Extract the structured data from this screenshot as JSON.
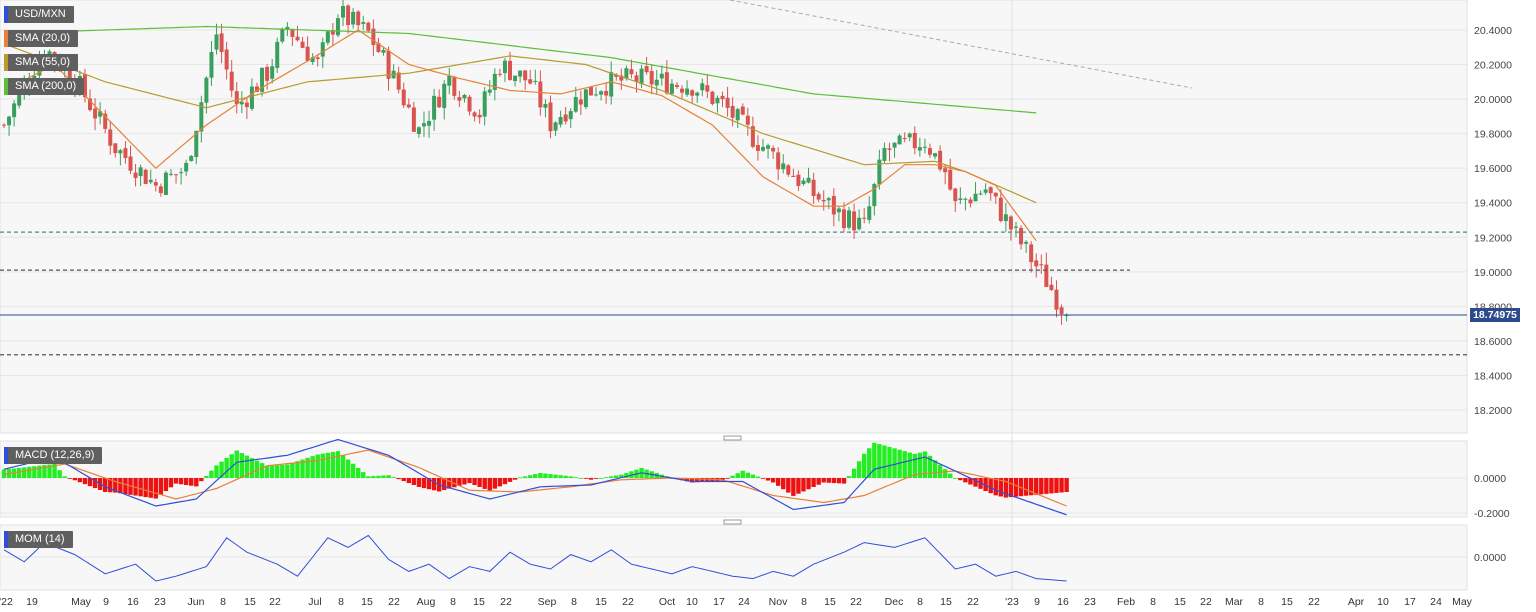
{
  "legends": {
    "symbol": "USD/MXN",
    "sma20": "SMA (20,0)",
    "sma55": "SMA (55,0)",
    "sma200": "SMA (200,0)",
    "macd": "MACD (12,26,9)",
    "mom": "MOM (14)"
  },
  "price_label": "18.74975",
  "colors": {
    "up": "#3a9e5e",
    "down": "#d9534f",
    "sma20": "#e8803a",
    "sma55": "#b89a2e",
    "sma200": "#5cbf3a",
    "macd_line": "#2f4fd8",
    "signal_line": "#e8803a",
    "hist_pos": "#22ee22",
    "hist_neg": "#ee1111",
    "mom_line": "#2f4fd8",
    "price_line": "#2c4a8c"
  },
  "chart_data": {
    "type": "candlestick",
    "price_axis": {
      "ticks": [
        "20.4000",
        "20.2000",
        "20.0000",
        "19.8000",
        "19.6000",
        "19.4000",
        "19.2000",
        "19.0000",
        "18.8000",
        "18.6000",
        "18.4000",
        "18.2000"
      ],
      "range": [
        18.07,
        20.6
      ]
    },
    "macd_axis": {
      "ticks": [
        "0.0000",
        "-0.2000"
      ]
    },
    "mom_axis": {
      "ticks": [
        "0.0000"
      ]
    },
    "x_tick_labels": [
      "'22",
      "19",
      "May",
      "9",
      "16",
      "23",
      "Jun",
      "8",
      "15",
      "22",
      "Jul",
      "8",
      "15",
      "22",
      "Aug",
      "8",
      "15",
      "22",
      "Sep",
      "8",
      "15",
      "22",
      "Oct",
      "10",
      "17",
      "24",
      "Nov",
      "8",
      "15",
      "22",
      "Dec",
      "8",
      "15",
      "22",
      "'23",
      "9",
      "16",
      "23",
      "Feb",
      "8",
      "15",
      "22",
      "Mar",
      "8",
      "15",
      "22",
      "Apr",
      "10",
      "17",
      "24",
      "May"
    ],
    "horizontal_levels": [
      19.23,
      19.01,
      18.52
    ],
    "last_price": 18.74975,
    "anchors": {
      "close": [
        [
          0,
          19.85
        ],
        [
          8,
          20.3
        ],
        [
          14,
          20.12
        ],
        [
          22,
          19.72
        ],
        [
          30,
          19.5
        ],
        [
          36,
          19.6
        ],
        [
          42,
          20.38
        ],
        [
          46,
          19.95
        ],
        [
          52,
          20.15
        ],
        [
          56,
          20.42
        ],
        [
          62,
          20.2
        ],
        [
          66,
          20.5
        ],
        [
          72,
          20.38
        ],
        [
          76,
          20.18
        ],
        [
          82,
          19.82
        ],
        [
          88,
          20.12
        ],
        [
          94,
          19.92
        ],
        [
          98,
          20.2
        ],
        [
          104,
          20.1
        ],
        [
          108,
          19.86
        ],
        [
          114,
          20.02
        ],
        [
          118,
          20.08
        ],
        [
          124,
          20.12
        ],
        [
          130,
          20.1
        ],
        [
          136,
          20.08
        ],
        [
          142,
          19.97
        ],
        [
          148,
          19.78
        ],
        [
          154,
          19.62
        ],
        [
          160,
          19.45
        ],
        [
          166,
          19.32
        ],
        [
          170,
          19.26
        ],
        [
          174,
          19.7
        ],
        [
          178,
          19.73
        ],
        [
          182,
          19.76
        ],
        [
          186,
          19.58
        ],
        [
          188,
          19.38
        ],
        [
          190,
          19.42
        ],
        [
          194,
          19.48
        ],
        [
          198,
          19.3
        ],
        [
          202,
          19.12
        ],
        [
          206,
          18.95
        ],
        [
          210,
          18.75
        ]
      ],
      "sma20": [
        [
          0,
          20.05
        ],
        [
          10,
          20.2
        ],
        [
          20,
          19.9
        ],
        [
          30,
          19.6
        ],
        [
          40,
          19.85
        ],
        [
          50,
          20.05
        ],
        [
          60,
          20.22
        ],
        [
          70,
          20.4
        ],
        [
          80,
          20.2
        ],
        [
          90,
          20.12
        ],
        [
          100,
          20.05
        ],
        [
          110,
          20.03
        ],
        [
          120,
          20.1
        ],
        [
          130,
          20.02
        ],
        [
          140,
          19.85
        ],
        [
          150,
          19.55
        ],
        [
          160,
          19.38
        ],
        [
          166,
          19.38
        ],
        [
          172,
          19.48
        ],
        [
          178,
          19.62
        ],
        [
          184,
          19.62
        ],
        [
          190,
          19.58
        ],
        [
          196,
          19.5
        ],
        [
          204,
          19.18
        ]
      ],
      "sma55": [
        [
          0,
          20.32
        ],
        [
          20,
          20.1
        ],
        [
          40,
          19.95
        ],
        [
          60,
          20.1
        ],
        [
          80,
          20.15
        ],
        [
          100,
          20.25
        ],
        [
          115,
          20.2
        ],
        [
          130,
          20.05
        ],
        [
          150,
          19.8
        ],
        [
          170,
          19.62
        ],
        [
          184,
          19.64
        ],
        [
          190,
          19.58
        ],
        [
          204,
          19.4
        ]
      ],
      "sma200": [
        [
          0,
          20.38
        ],
        [
          40,
          20.42
        ],
        [
          80,
          20.38
        ],
        [
          120,
          20.24
        ],
        [
          160,
          20.03
        ],
        [
          180,
          19.98
        ],
        [
          204,
          19.92
        ]
      ],
      "macd": [
        [
          0,
          0.05
        ],
        [
          10,
          0.12
        ],
        [
          20,
          -0.05
        ],
        [
          30,
          -0.16
        ],
        [
          38,
          -0.12
        ],
        [
          46,
          0.09
        ],
        [
          56,
          0.13
        ],
        [
          66,
          0.22
        ],
        [
          76,
          0.13
        ],
        [
          86,
          -0.04
        ],
        [
          96,
          -0.12
        ],
        [
          106,
          -0.05
        ],
        [
          116,
          -0.04
        ],
        [
          126,
          0.03
        ],
        [
          136,
          -0.02
        ],
        [
          146,
          -0.02
        ],
        [
          156,
          -0.18
        ],
        [
          166,
          -0.14
        ],
        [
          172,
          0.05
        ],
        [
          182,
          0.12
        ],
        [
          188,
          0.04
        ],
        [
          196,
          -0.07
        ],
        [
          210,
          -0.21
        ]
      ],
      "signal": [
        [
          0,
          0.02
        ],
        [
          12,
          0.08
        ],
        [
          22,
          -0.02
        ],
        [
          34,
          -0.12
        ],
        [
          42,
          -0.06
        ],
        [
          52,
          0.07
        ],
        [
          62,
          0.1
        ],
        [
          72,
          0.16
        ],
        [
          82,
          0.06
        ],
        [
          92,
          -0.07
        ],
        [
          102,
          -0.08
        ],
        [
          112,
          -0.05
        ],
        [
          122,
          -0.01
        ],
        [
          132,
          0.0
        ],
        [
          142,
          -0.01
        ],
        [
          152,
          -0.1
        ],
        [
          162,
          -0.14
        ],
        [
          170,
          -0.1
        ],
        [
          180,
          0.02
        ],
        [
          188,
          0.04
        ],
        [
          198,
          -0.02
        ],
        [
          210,
          -0.16
        ]
      ],
      "momentum": [
        [
          0,
          0.3
        ],
        [
          4,
          -0.2
        ],
        [
          8,
          0.6
        ],
        [
          14,
          0.1
        ],
        [
          20,
          -0.7
        ],
        [
          26,
          -0.3
        ],
        [
          30,
          -1.0
        ],
        [
          34,
          -0.8
        ],
        [
          40,
          -0.4
        ],
        [
          44,
          0.8
        ],
        [
          48,
          0.2
        ],
        [
          54,
          -0.3
        ],
        [
          58,
          -0.8
        ],
        [
          64,
          0.8
        ],
        [
          68,
          0.4
        ],
        [
          72,
          0.9
        ],
        [
          76,
          -0.1
        ],
        [
          80,
          -0.6
        ],
        [
          84,
          -0.3
        ],
        [
          88,
          -0.9
        ],
        [
          92,
          -0.4
        ],
        [
          96,
          -0.6
        ],
        [
          100,
          0.2
        ],
        [
          104,
          -0.3
        ],
        [
          108,
          -0.5
        ],
        [
          112,
          0.1
        ],
        [
          116,
          -0.2
        ],
        [
          120,
          0.3
        ],
        [
          124,
          -0.3
        ],
        [
          128,
          -0.5
        ],
        [
          132,
          -0.7
        ],
        [
          136,
          -0.4
        ],
        [
          140,
          -0.6
        ],
        [
          144,
          -0.8
        ],
        [
          148,
          -0.9
        ],
        [
          152,
          -0.6
        ],
        [
          156,
          -0.8
        ],
        [
          160,
          -0.3
        ],
        [
          166,
          0.2
        ],
        [
          170,
          0.6
        ],
        [
          176,
          0.4
        ],
        [
          182,
          0.8
        ],
        [
          188,
          -0.5
        ],
        [
          192,
          -0.3
        ],
        [
          196,
          -0.8
        ],
        [
          200,
          -0.6
        ],
        [
          204,
          -0.9
        ],
        [
          210,
          -1.0
        ]
      ]
    }
  }
}
